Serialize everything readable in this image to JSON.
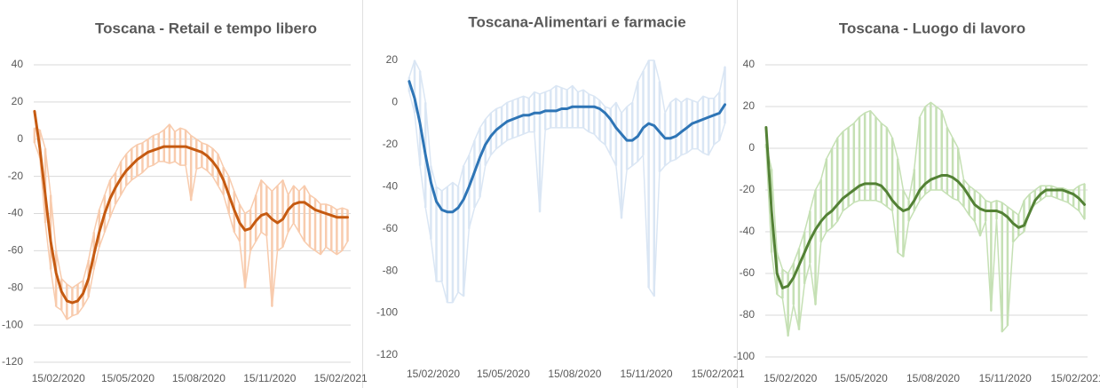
{
  "chart_data": [
    {
      "type": "line",
      "title": "Toscana - Retail e tempo libero",
      "x": [
        "15/01/2020",
        "22/01/2020",
        "29/01/2020",
        "05/02/2020",
        "12/02/2020",
        "19/02/2020",
        "26/02/2020",
        "04/03/2020",
        "11/03/2020",
        "18/03/2020",
        "25/03/2020",
        "01/04/2020",
        "08/04/2020",
        "15/04/2020",
        "22/04/2020",
        "29/04/2020",
        "06/05/2020",
        "13/05/2020",
        "20/05/2020",
        "27/05/2020",
        "03/06/2020",
        "10/06/2020",
        "17/06/2020",
        "24/06/2020",
        "01/07/2020",
        "08/07/2020",
        "15/07/2020",
        "22/07/2020",
        "29/07/2020",
        "05/08/2020",
        "12/08/2020",
        "19/08/2020",
        "26/08/2020",
        "02/09/2020",
        "09/09/2020",
        "16/09/2020",
        "23/09/2020",
        "30/09/2020",
        "07/10/2020",
        "14/10/2020",
        "21/10/2020",
        "28/10/2020",
        "04/11/2020",
        "11/11/2020",
        "18/11/2020",
        "25/11/2020",
        "02/12/2020",
        "09/12/2020",
        "16/12/2020",
        "23/12/2020",
        "30/12/2020",
        "06/01/2021",
        "13/01/2021",
        "20/01/2021",
        "27/01/2021",
        "03/02/2021",
        "10/02/2021",
        "17/02/2021",
        "24/02/2021"
      ],
      "xlim": [
        "14/01/2020",
        "28/02/2021"
      ],
      "xticks": [
        "15/02/2020",
        "15/05/2020",
        "15/08/2020",
        "15/11/2020",
        "15/02/2021"
      ],
      "ylim": [
        -120,
        40
      ],
      "yticks": [
        -120,
        -100,
        -80,
        -60,
        -40,
        -20,
        0,
        20,
        40
      ],
      "grid": true,
      "series": [
        {
          "color": "#f8cbad",
          "values": [
            6,
            5,
            -5,
            -30,
            -60,
            -75,
            -78,
            -80,
            -78,
            -76,
            -65,
            -50,
            -38,
            -30,
            -22,
            -18,
            -12,
            -8,
            -5,
            -3,
            -2,
            0,
            2,
            3,
            5,
            8,
            4,
            6,
            5,
            2,
            0,
            -2,
            -3,
            -5,
            -8,
            -15,
            -20,
            -28,
            -35,
            -40,
            -38,
            -30,
            -22,
            -25,
            -28,
            -25,
            -22,
            -30,
            -25,
            -28,
            -25,
            -30,
            -32,
            -35,
            -35,
            -36,
            -38,
            -37,
            -38
          ]
        },
        {
          "color": "#f8cbad",
          "values": [
            -2,
            -10,
            -45,
            -70,
            -90,
            -92,
            -97,
            -95,
            -94,
            -90,
            -85,
            -70,
            -58,
            -50,
            -42,
            -35,
            -30,
            -25,
            -22,
            -20,
            -18,
            -15,
            -14,
            -12,
            -12,
            -13,
            -12,
            -14,
            -14,
            -33,
            -16,
            -15,
            -17,
            -20,
            -25,
            -30,
            -40,
            -50,
            -55,
            -80,
            -60,
            -55,
            -50,
            -52,
            -90,
            -60,
            -58,
            -50,
            -45,
            -50,
            -55,
            -58,
            -60,
            -62,
            -58,
            -60,
            -62,
            -60,
            -55
          ]
        },
        {
          "color": "#c55a11",
          "values": [
            15,
            -5,
            -30,
            -55,
            -72,
            -82,
            -87,
            -88,
            -87,
            -83,
            -75,
            -62,
            -50,
            -40,
            -32,
            -26,
            -21,
            -17,
            -14,
            -11,
            -9,
            -7,
            -6,
            -5,
            -4,
            -4,
            -4,
            -4,
            -4,
            -5,
            -6,
            -7,
            -9,
            -12,
            -16,
            -22,
            -30,
            -38,
            -45,
            -49,
            -48,
            -44,
            -41,
            -40,
            -43,
            -45,
            -43,
            -38,
            -35,
            -34,
            -34,
            -36,
            -38,
            -39,
            -40,
            -41,
            -42,
            -42,
            -42
          ]
        }
      ]
    },
    {
      "type": "line",
      "title": "Toscana-Alimentari e farmacie",
      "x": [
        "15/01/2020",
        "22/01/2020",
        "29/01/2020",
        "05/02/2020",
        "12/02/2020",
        "19/02/2020",
        "26/02/2020",
        "04/03/2020",
        "11/03/2020",
        "18/03/2020",
        "25/03/2020",
        "01/04/2020",
        "08/04/2020",
        "15/04/2020",
        "22/04/2020",
        "29/04/2020",
        "06/05/2020",
        "13/05/2020",
        "20/05/2020",
        "27/05/2020",
        "03/06/2020",
        "10/06/2020",
        "17/06/2020",
        "24/06/2020",
        "01/07/2020",
        "08/07/2020",
        "15/07/2020",
        "22/07/2020",
        "29/07/2020",
        "05/08/2020",
        "12/08/2020",
        "19/08/2020",
        "26/08/2020",
        "02/09/2020",
        "09/09/2020",
        "16/09/2020",
        "23/09/2020",
        "30/09/2020",
        "07/10/2020",
        "14/10/2020",
        "21/10/2020",
        "28/10/2020",
        "04/11/2020",
        "11/11/2020",
        "18/11/2020",
        "25/11/2020",
        "02/12/2020",
        "09/12/2020",
        "16/12/2020",
        "23/12/2020",
        "30/12/2020",
        "06/01/2021",
        "13/01/2021",
        "20/01/2021",
        "27/01/2021",
        "03/02/2021",
        "10/02/2021",
        "17/02/2021",
        "24/02/2021"
      ],
      "xlim": [
        "14/01/2020",
        "28/02/2021"
      ],
      "xticks": [
        "15/02/2020",
        "15/05/2020",
        "15/08/2020",
        "15/11/2020",
        "15/02/2021"
      ],
      "ylim": [
        -120,
        20
      ],
      "yticks": [
        -120,
        -100,
        -80,
        -60,
        -40,
        -20,
        0,
        20
      ],
      "grid": false,
      "series": [
        {
          "color": "#dae6f4",
          "values": [
            12,
            20,
            15,
            0,
            -30,
            -40,
            -42,
            -40,
            -38,
            -40,
            -30,
            -25,
            -18,
            -12,
            -8,
            -5,
            -3,
            -2,
            0,
            1,
            2,
            3,
            2,
            5,
            4,
            5,
            6,
            8,
            7,
            6,
            8,
            5,
            6,
            4,
            3,
            1,
            -2,
            -3,
            0,
            -5,
            -2,
            0,
            10,
            15,
            20,
            20,
            10,
            -5,
            0,
            2,
            0,
            2,
            1,
            0,
            3,
            2,
            2,
            5,
            17
          ]
        },
        {
          "color": "#dae6f4",
          "values": [
            5,
            -5,
            -30,
            -50,
            -65,
            -85,
            -85,
            -95,
            -95,
            -90,
            -92,
            -60,
            -50,
            -45,
            -30,
            -25,
            -22,
            -20,
            -18,
            -17,
            -16,
            -15,
            -14,
            -14,
            -52,
            -13,
            -12,
            -12,
            -12,
            -12,
            -12,
            -12,
            -12,
            -14,
            -15,
            -18,
            -20,
            -25,
            -30,
            -55,
            -32,
            -30,
            -28,
            -25,
            -88,
            -92,
            -33,
            -30,
            -28,
            -27,
            -25,
            -24,
            -22,
            -22,
            -24,
            -25,
            -20,
            -18,
            -10
          ]
        },
        {
          "color": "#2e75b6",
          "values": [
            10,
            2,
            -10,
            -25,
            -38,
            -47,
            -51,
            -52,
            -52,
            -50,
            -46,
            -40,
            -33,
            -26,
            -20,
            -16,
            -13,
            -11,
            -9,
            -8,
            -7,
            -6,
            -6,
            -5,
            -5,
            -4,
            -4,
            -4,
            -3,
            -3,
            -2,
            -2,
            -2,
            -2,
            -2,
            -3,
            -5,
            -8,
            -12,
            -15,
            -18,
            -18,
            -16,
            -12,
            -10,
            -11,
            -14,
            -17,
            -17,
            -16,
            -14,
            -12,
            -10,
            -9,
            -8,
            -7,
            -6,
            -5,
            -1
          ]
        }
      ]
    },
    {
      "type": "line",
      "title": "Toscana - Luogo di lavoro",
      "x": [
        "15/01/2020",
        "22/01/2020",
        "29/01/2020",
        "05/02/2020",
        "12/02/2020",
        "19/02/2020",
        "26/02/2020",
        "04/03/2020",
        "11/03/2020",
        "18/03/2020",
        "25/03/2020",
        "01/04/2020",
        "08/04/2020",
        "15/04/2020",
        "22/04/2020",
        "29/04/2020",
        "06/05/2020",
        "13/05/2020",
        "20/05/2020",
        "27/05/2020",
        "03/06/2020",
        "10/06/2020",
        "17/06/2020",
        "24/06/2020",
        "01/07/2020",
        "08/07/2020",
        "15/07/2020",
        "22/07/2020",
        "29/07/2020",
        "05/08/2020",
        "12/08/2020",
        "19/08/2020",
        "26/08/2020",
        "02/09/2020",
        "09/09/2020",
        "16/09/2020",
        "23/09/2020",
        "30/09/2020",
        "07/10/2020",
        "14/10/2020",
        "21/10/2020",
        "28/10/2020",
        "04/11/2020",
        "11/11/2020",
        "18/11/2020",
        "25/11/2020",
        "02/12/2020",
        "09/12/2020",
        "16/12/2020",
        "23/12/2020",
        "30/12/2020",
        "06/01/2021",
        "13/01/2021",
        "20/01/2021",
        "27/01/2021",
        "03/02/2021",
        "10/02/2021",
        "17/02/2021",
        "24/02/2021"
      ],
      "xlim": [
        "14/01/2020",
        "28/02/2021"
      ],
      "xticks": [
        "15/02/2020",
        "15/05/2020",
        "15/08/2020",
        "15/11/2020",
        "15/02/2021"
      ],
      "ylim": [
        -100,
        40
      ],
      "yticks": [
        -100,
        -80,
        -60,
        -40,
        -20,
        0,
        20,
        40
      ],
      "grid": true,
      "series": [
        {
          "color": "#c5e0b4",
          "values": [
            2,
            -10,
            -50,
            -58,
            -60,
            -55,
            -48,
            -40,
            -30,
            -20,
            -15,
            -5,
            0,
            5,
            8,
            10,
            12,
            15,
            17,
            18,
            15,
            12,
            10,
            5,
            -5,
            -20,
            -25,
            -10,
            15,
            20,
            22,
            20,
            18,
            10,
            5,
            0,
            -15,
            -18,
            -20,
            -22,
            -25,
            -26,
            -25,
            -26,
            -28,
            -30,
            -32,
            -25,
            -22,
            -20,
            -18,
            -18,
            -18,
            -19,
            -19,
            -20,
            -20,
            -18,
            -17
          ]
        },
        {
          "color": "#c5e0b4",
          "values": [
            0,
            -50,
            -70,
            -72,
            -90,
            -75,
            -87,
            -65,
            -55,
            -75,
            -45,
            -40,
            -38,
            -35,
            -30,
            -28,
            -26,
            -25,
            -25,
            -25,
            -25,
            -26,
            -28,
            -30,
            -50,
            -52,
            -35,
            -30,
            -25,
            -22,
            -20,
            -20,
            -20,
            -22,
            -24,
            -25,
            -28,
            -32,
            -35,
            -42,
            -35,
            -78,
            -34,
            -88,
            -85,
            -45,
            -42,
            -40,
            -30,
            -27,
            -25,
            -23,
            -23,
            -24,
            -25,
            -26,
            -28,
            -30,
            -34
          ]
        },
        {
          "color": "#538135",
          "values": [
            10,
            -30,
            -60,
            -67,
            -66,
            -62,
            -56,
            -50,
            -44,
            -39,
            -35,
            -32,
            -30,
            -27,
            -24,
            -22,
            -20,
            -18,
            -17,
            -17,
            -17,
            -18,
            -21,
            -25,
            -28,
            -30,
            -29,
            -25,
            -20,
            -17,
            -15,
            -14,
            -13,
            -13,
            -14,
            -16,
            -19,
            -23,
            -27,
            -29,
            -30,
            -30,
            -30,
            -31,
            -33,
            -36,
            -38,
            -37,
            -31,
            -25,
            -22,
            -20,
            -20,
            -20,
            -20,
            -21,
            -22,
            -24,
            -27
          ]
        }
      ]
    }
  ]
}
